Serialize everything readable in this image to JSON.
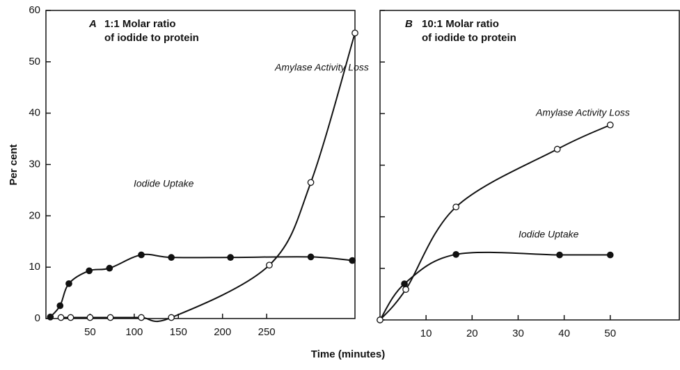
{
  "chart_data": [
    {
      "type": "line",
      "panel": "A",
      "title": [
        "1:1 Molar ratio",
        "of iodide to protein"
      ],
      "y_label": "Per cent",
      "x_label": "Time (minutes)",
      "xlim": [
        0,
        350
      ],
      "xticks": [
        50,
        100,
        150,
        200,
        250
      ],
      "ylim": [
        0,
        60
      ],
      "yticks": [
        0,
        10,
        20,
        30,
        40,
        50,
        60
      ],
      "series": [
        {
          "name": "Iodide Uptake",
          "color": "#111111",
          "marker": "filled",
          "x": [
            5,
            16,
            26,
            49,
            72,
            108,
            142,
            209,
            300,
            347
          ],
          "values": [
            0.3,
            2.5,
            6.8,
            9.3,
            9.8,
            12.4,
            11.9,
            11.9,
            12,
            11.3
          ]
        },
        {
          "name": "Amylase Activity Loss",
          "color": "#111111",
          "marker": "open",
          "x": [
            17,
            28,
            50,
            73,
            108,
            142,
            253,
            300,
            350
          ],
          "values": [
            0.2,
            0.2,
            0.2,
            0.2,
            0.2,
            0.2,
            10.4,
            26.5,
            55.6
          ]
        }
      ]
    },
    {
      "type": "line",
      "panel": "B",
      "title": [
        "10:1 Molar ratio",
        "of iodide to protein"
      ],
      "xlim": [
        0,
        65
      ],
      "xticks": [
        10,
        20,
        30,
        40,
        50
      ],
      "ylim": [
        0,
        60
      ],
      "series": [
        {
          "name": "Iodide Uptake",
          "color": "#111111",
          "marker": "filled",
          "x": [
            0,
            5.3,
            16.5,
            39,
            50
          ],
          "values": [
            0,
            7,
            12.7,
            12.6,
            12.6
          ]
        },
        {
          "name": "Amylase Activity Loss",
          "color": "#111111",
          "marker": "open",
          "x": [
            0,
            5.6,
            16.5,
            38.5,
            50
          ],
          "values": [
            0,
            5.9,
            21.9,
            33.1,
            37.8
          ]
        }
      ]
    }
  ]
}
